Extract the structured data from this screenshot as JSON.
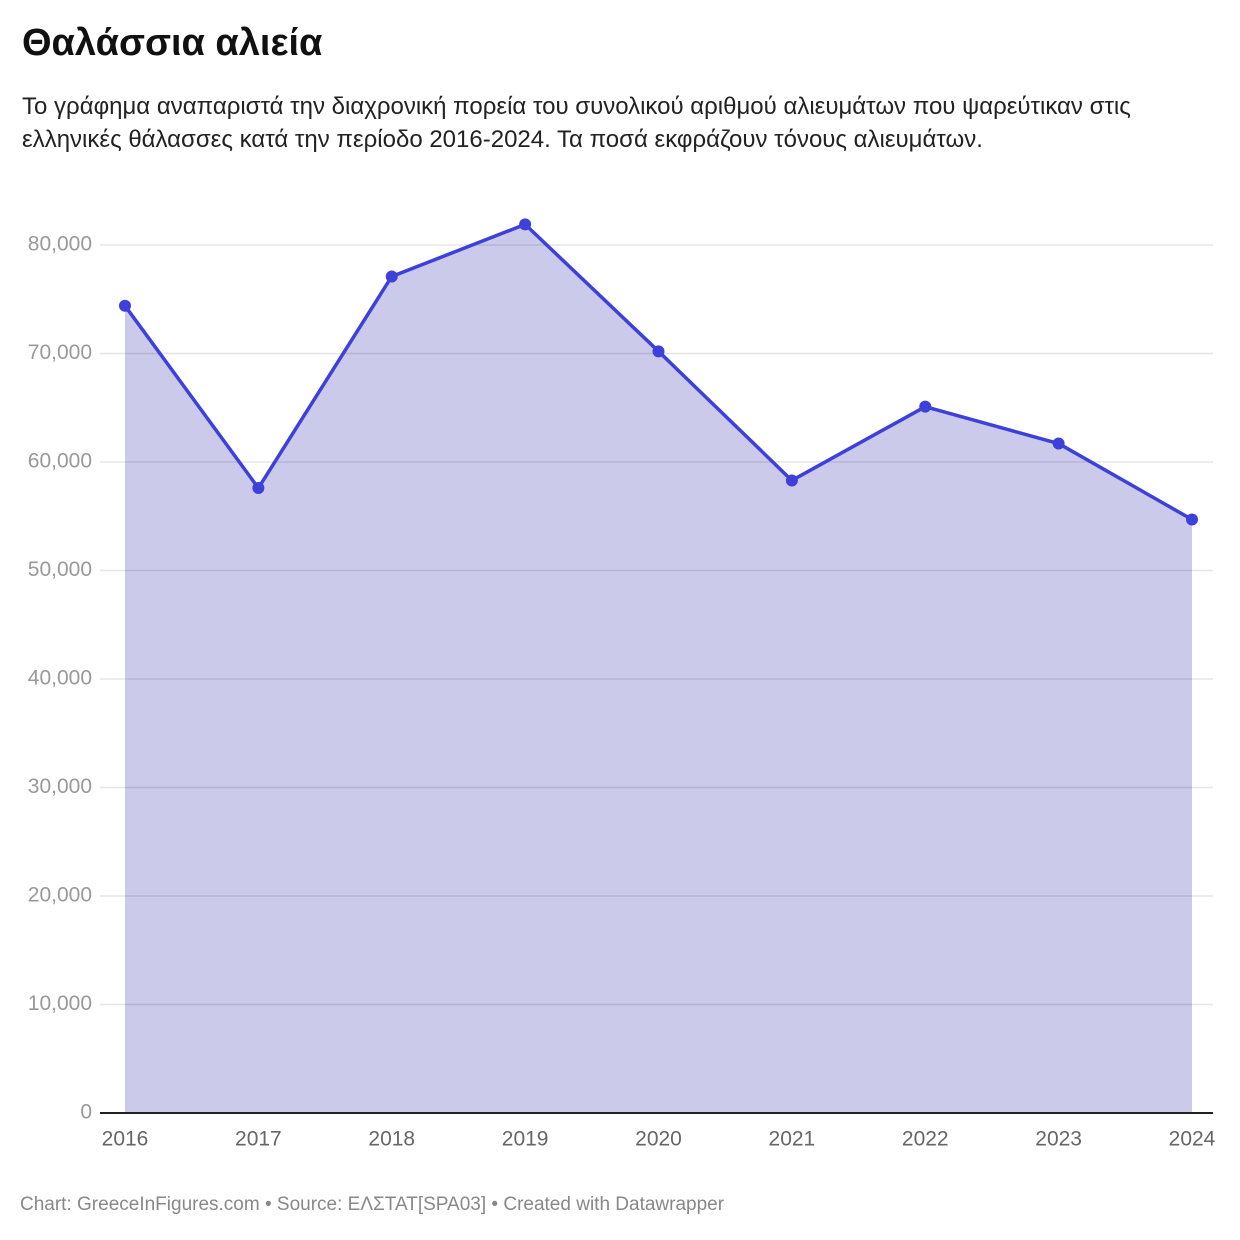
{
  "chart_data": {
    "type": "area",
    "title": "Θαλάσσια αλιεία",
    "subtitle": "Το γράφημα αναπαριστά την διαχρονική πορεία του συνολικού αριθμού αλιευμάτων που ψαρεύτικαν στις ελληνικές θάλασσες κατά την περίοδο 2016-2024. Τα ποσά εκφράζουν τόνους αλιευμάτων.",
    "footer": "Chart: GreeceInFigures.com • Source: ΕΛΣΤΑΤ[SPA03] • Created with Datawrapper",
    "categories": [
      "2016",
      "2017",
      "2018",
      "2019",
      "2020",
      "2021",
      "2022",
      "2023",
      "2024"
    ],
    "series": [
      {
        "color": "#3d40d9",
        "values": [
          74400,
          57600,
          77100,
          81900,
          70200,
          58300,
          65100,
          61700,
          54700
        ]
      }
    ],
    "fill_color": "#cccaea",
    "ylim": [
      0,
      80000
    ],
    "yticks": [
      0,
      {
        "value": 10000,
        "label": "10,000"
      },
      {
        "value": 20000,
        "label": "20,000"
      },
      {
        "value": 30000,
        "label": "30,000"
      },
      {
        "value": 40000,
        "label": "40,000"
      },
      {
        "value": 50000,
        "label": "50,000"
      },
      {
        "value": 60000,
        "label": "60,000"
      },
      {
        "value": 70000,
        "label": "70,000"
      },
      {
        "value": 80000,
        "label": "80,000"
      }
    ],
    "grid": true
  }
}
